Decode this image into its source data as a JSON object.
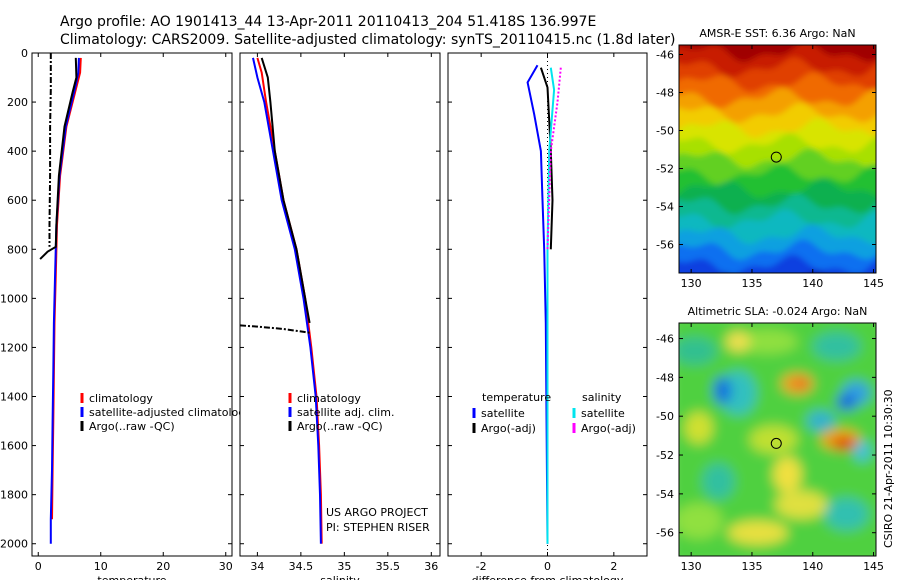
{
  "header": {
    "line1": "Argo profile: AO 1901413_44 13-Apr-2011 20110413_204 51.418S 136.997E",
    "line2": "Climatology: CARS2009. Satellite-adjusted climatology: synTS_20110415.nc (1.8d later)"
  },
  "colors": {
    "climatology": "#ff0000",
    "satellite": "#0000ff",
    "argo": "#000000",
    "sal_sat": "#00e5ee",
    "sal_argo": "#ff00ff"
  },
  "chart_data": [
    {
      "type": "line",
      "xlabel": "temperature",
      "ylabel": "",
      "xlim": [
        -1,
        31
      ],
      "ylim": [
        2050,
        0
      ],
      "y_inverted": true,
      "xticks": [
        0,
        10,
        20,
        30
      ],
      "yticks": [
        0,
        200,
        400,
        600,
        800,
        1000,
        1200,
        1400,
        1600,
        1800,
        2000
      ],
      "legend_labels": [
        "climatology",
        "satellite-adjusted climatology",
        "Argo(..raw -QC)"
      ],
      "series": [
        {
          "points": [
            [
              6.8,
              20
            ],
            [
              6.7,
              80
            ],
            [
              6.3,
              120
            ],
            [
              4.5,
              300
            ],
            [
              3.5,
              500
            ],
            [
              3.0,
              700
            ],
            [
              2.8,
              900
            ],
            [
              2.6,
              1100
            ],
            [
              2.5,
              1300
            ],
            [
              2.4,
              1500
            ],
            [
              2.3,
              1700
            ],
            [
              2.2,
              1900
            ]
          ]
        },
        {
          "points": [
            [
              6.5,
              20
            ],
            [
              6.4,
              80
            ],
            [
              6.0,
              130
            ],
            [
              4.4,
              300
            ],
            [
              3.4,
              500
            ],
            [
              2.9,
              700
            ],
            [
              2.7,
              900
            ],
            [
              2.5,
              1100
            ],
            [
              2.4,
              1300
            ],
            [
              2.3,
              1500
            ],
            [
              2.2,
              1700
            ],
            [
              2.0,
              1900
            ],
            [
              2.0,
              2000
            ]
          ]
        },
        {
          "points": [
            [
              6.0,
              20
            ],
            [
              6.1,
              100
            ],
            [
              5.5,
              160
            ],
            [
              4.2,
              300
            ],
            [
              3.3,
              500
            ],
            [
              2.9,
              700
            ],
            [
              2.8,
              790
            ],
            [
              1.5,
              810
            ],
            [
              0.3,
              840
            ]
          ]
        },
        {
          "points": [
            [
              2.0,
              0
            ],
            [
              2.0,
              150
            ],
            [
              1.9,
              300
            ],
            [
              1.9,
              500
            ],
            [
              1.8,
              700
            ],
            [
              1.8,
              790
            ]
          ]
        }
      ]
    },
    {
      "type": "line",
      "xlabel": "salinity",
      "ylabel": "",
      "xlim": [
        33.8,
        36.1
      ],
      "ylim": [
        2050,
        0
      ],
      "y_inverted": true,
      "xticks": [
        34,
        34.5,
        35,
        35.5,
        36
      ],
      "yticks": [
        0,
        200,
        400,
        600,
        800,
        1000,
        1200,
        1400,
        1600,
        1800,
        2000
      ],
      "legend_labels": [
        "climatology",
        "satellite adj. clim.",
        "Argo(..raw -QC)"
      ],
      "annotation_lines": [
        "US ARGO PROJECT",
        "PI: STEPHEN RISER"
      ],
      "series": [
        {
          "points": [
            [
              34.0,
              20
            ],
            [
              34.05,
              80
            ],
            [
              34.1,
              200
            ],
            [
              34.2,
              400
            ],
            [
              34.3,
              600
            ],
            [
              34.45,
              800
            ],
            [
              34.55,
              1000
            ],
            [
              34.62,
              1200
            ],
            [
              34.68,
              1400
            ],
            [
              34.71,
              1600
            ],
            [
              34.73,
              1800
            ],
            [
              34.74,
              2000
            ]
          ]
        },
        {
          "points": [
            [
              33.95,
              20
            ],
            [
              34.0,
              100
            ],
            [
              34.08,
              200
            ],
            [
              34.18,
              400
            ],
            [
              34.28,
              600
            ],
            [
              34.43,
              800
            ],
            [
              34.53,
              1000
            ],
            [
              34.61,
              1200
            ],
            [
              34.67,
              1400
            ],
            [
              34.7,
              1600
            ],
            [
              34.72,
              1800
            ],
            [
              34.73,
              2000
            ]
          ]
        },
        {
          "points": [
            [
              34.05,
              20
            ],
            [
              34.12,
              100
            ],
            [
              34.15,
              200
            ],
            [
              34.2,
              400
            ],
            [
              34.3,
              600
            ],
            [
              34.45,
              800
            ],
            [
              34.55,
              1000
            ],
            [
              34.6,
              1100
            ]
          ]
        },
        {
          "points": [
            [
              33.8,
              1110
            ],
            [
              34.0,
              1115
            ],
            [
              34.3,
              1125
            ],
            [
              34.6,
              1140
            ]
          ]
        }
      ]
    },
    {
      "type": "line",
      "xlabel": "difference from climatology",
      "ylabel": "",
      "xlim": [
        -3,
        3
      ],
      "ylim": [
        2050,
        0
      ],
      "y_inverted": true,
      "xticks": [
        -2,
        0,
        2
      ],
      "yticks": [
        0,
        200,
        400,
        600,
        800,
        1000,
        1200,
        1400,
        1600,
        1800,
        2000
      ],
      "legend_headers": [
        "temperature",
        "salinity"
      ],
      "legend_labels": [
        "satellite",
        "Argo(-adj)",
        "satellite",
        "Argo(-adj)"
      ],
      "series": [
        {
          "points": [
            [
              -0.3,
              50
            ],
            [
              -0.6,
              120
            ],
            [
              -0.4,
              250
            ],
            [
              -0.2,
              400
            ],
            [
              -0.15,
              600
            ],
            [
              -0.1,
              800
            ],
            [
              -0.05,
              1100
            ],
            [
              0.0,
              2000
            ]
          ]
        },
        {
          "points": [
            [
              -0.2,
              60
            ],
            [
              0.0,
              140
            ],
            [
              0.1,
              400
            ],
            [
              0.15,
              600
            ],
            [
              0.1,
              800
            ]
          ]
        },
        {
          "points": [
            [
              0.1,
              60
            ],
            [
              0.2,
              150
            ],
            [
              0.05,
              400
            ],
            [
              0.0,
              800
            ],
            [
              0.0,
              2000
            ]
          ]
        },
        {
          "points": [
            [
              0.4,
              60
            ],
            [
              0.3,
              200
            ],
            [
              0.1,
              400
            ],
            [
              0.0,
              800
            ]
          ]
        }
      ]
    },
    {
      "type": "heatmap",
      "title": "AMSR-E SST: 6.36 Argo: NaN",
      "xlim": [
        129,
        145.2
      ],
      "ylim": [
        -57.5,
        -45.5
      ],
      "xticks": [
        130,
        135,
        140,
        145
      ],
      "yticks": [
        -46,
        -48,
        -50,
        -52,
        -54,
        -56
      ],
      "marker": [
        137.0,
        -51.4
      ]
    },
    {
      "type": "heatmap",
      "title": "Altimetric SLA: -0.024 Argo: NaN",
      "xlim": [
        129,
        145.2
      ],
      "ylim": [
        -57.2,
        -45.2
      ],
      "xticks": [
        130,
        135,
        140,
        145
      ],
      "yticks": [
        -46,
        -48,
        -50,
        -52,
        -54,
        -56
      ],
      "marker": [
        137.0,
        -51.4
      ]
    }
  ],
  "side_note": "CSIRO 21-Apr-2011 10:30:30"
}
